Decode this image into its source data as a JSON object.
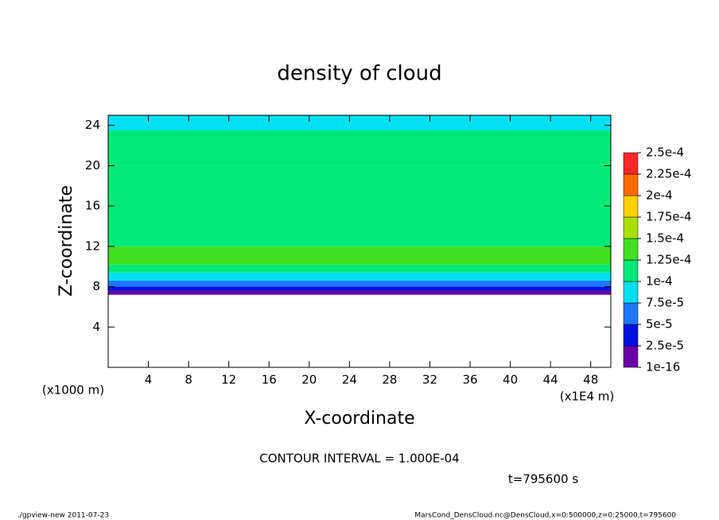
{
  "chart_data": {
    "type": "heatmap",
    "title": "density of cloud",
    "xlabel": "X-coordinate",
    "ylabel": "Z-coordinate",
    "x_unit_label": "(x1E4 m)",
    "y_unit_label": "(x1000 m)",
    "xlim": [
      0,
      50
    ],
    "xticks": [
      4,
      8,
      12,
      16,
      20,
      24,
      28,
      32,
      36,
      40,
      44,
      48
    ],
    "ylim": [
      0,
      25
    ],
    "yticks": [
      4,
      8,
      12,
      16,
      20,
      24
    ],
    "z_edges": [
      0,
      7.2,
      7.6,
      8.0,
      8.6,
      9.4,
      10.2,
      12,
      20,
      22,
      23.5,
      25
    ],
    "values": [
      null,
      1e-05,
      3e-05,
      6e-05,
      8.5e-05,
      0.00011,
      0.000135,
      0.00012,
      0.00011,
      0.0001,
      8.5e-05
    ],
    "colorbar_ticks": [
      {
        "value": 1e-16,
        "label": "1e-16"
      },
      {
        "value": 2.5e-05,
        "label": "2.5e-5"
      },
      {
        "value": 5e-05,
        "label": "5e-5"
      },
      {
        "value": 7.5e-05,
        "label": "7.5e-5"
      },
      {
        "value": 0.0001,
        "label": "1e-4"
      },
      {
        "value": 0.000125,
        "label": "1.25e-4"
      },
      {
        "value": 0.00015,
        "label": "1.5e-4"
      },
      {
        "value": 0.000175,
        "label": "1.75e-4"
      },
      {
        "value": 0.0002,
        "label": "2e-4"
      },
      {
        "value": 0.000225,
        "label": "2.25e-4"
      },
      {
        "value": 0.00025,
        "label": "2.5e-4"
      }
    ],
    "colorbar_colors": [
      "#6a00a8",
      "#0010e0",
      "#1e78ff",
      "#00e0f0",
      "#00e878",
      "#40e020",
      "#a8e000",
      "#ffd000",
      "#ff6a00",
      "#ff2828"
    ],
    "annotations": [
      "CONTOUR INTERVAL = 1.000E-04",
      "t=795600 s"
    ],
    "footer_left": "./gpview-new  2011-07-23",
    "footer_right": "MarsCond_DensCloud.nc@DensCloud,x=0:500000,z=0:25000,t=795600"
  }
}
